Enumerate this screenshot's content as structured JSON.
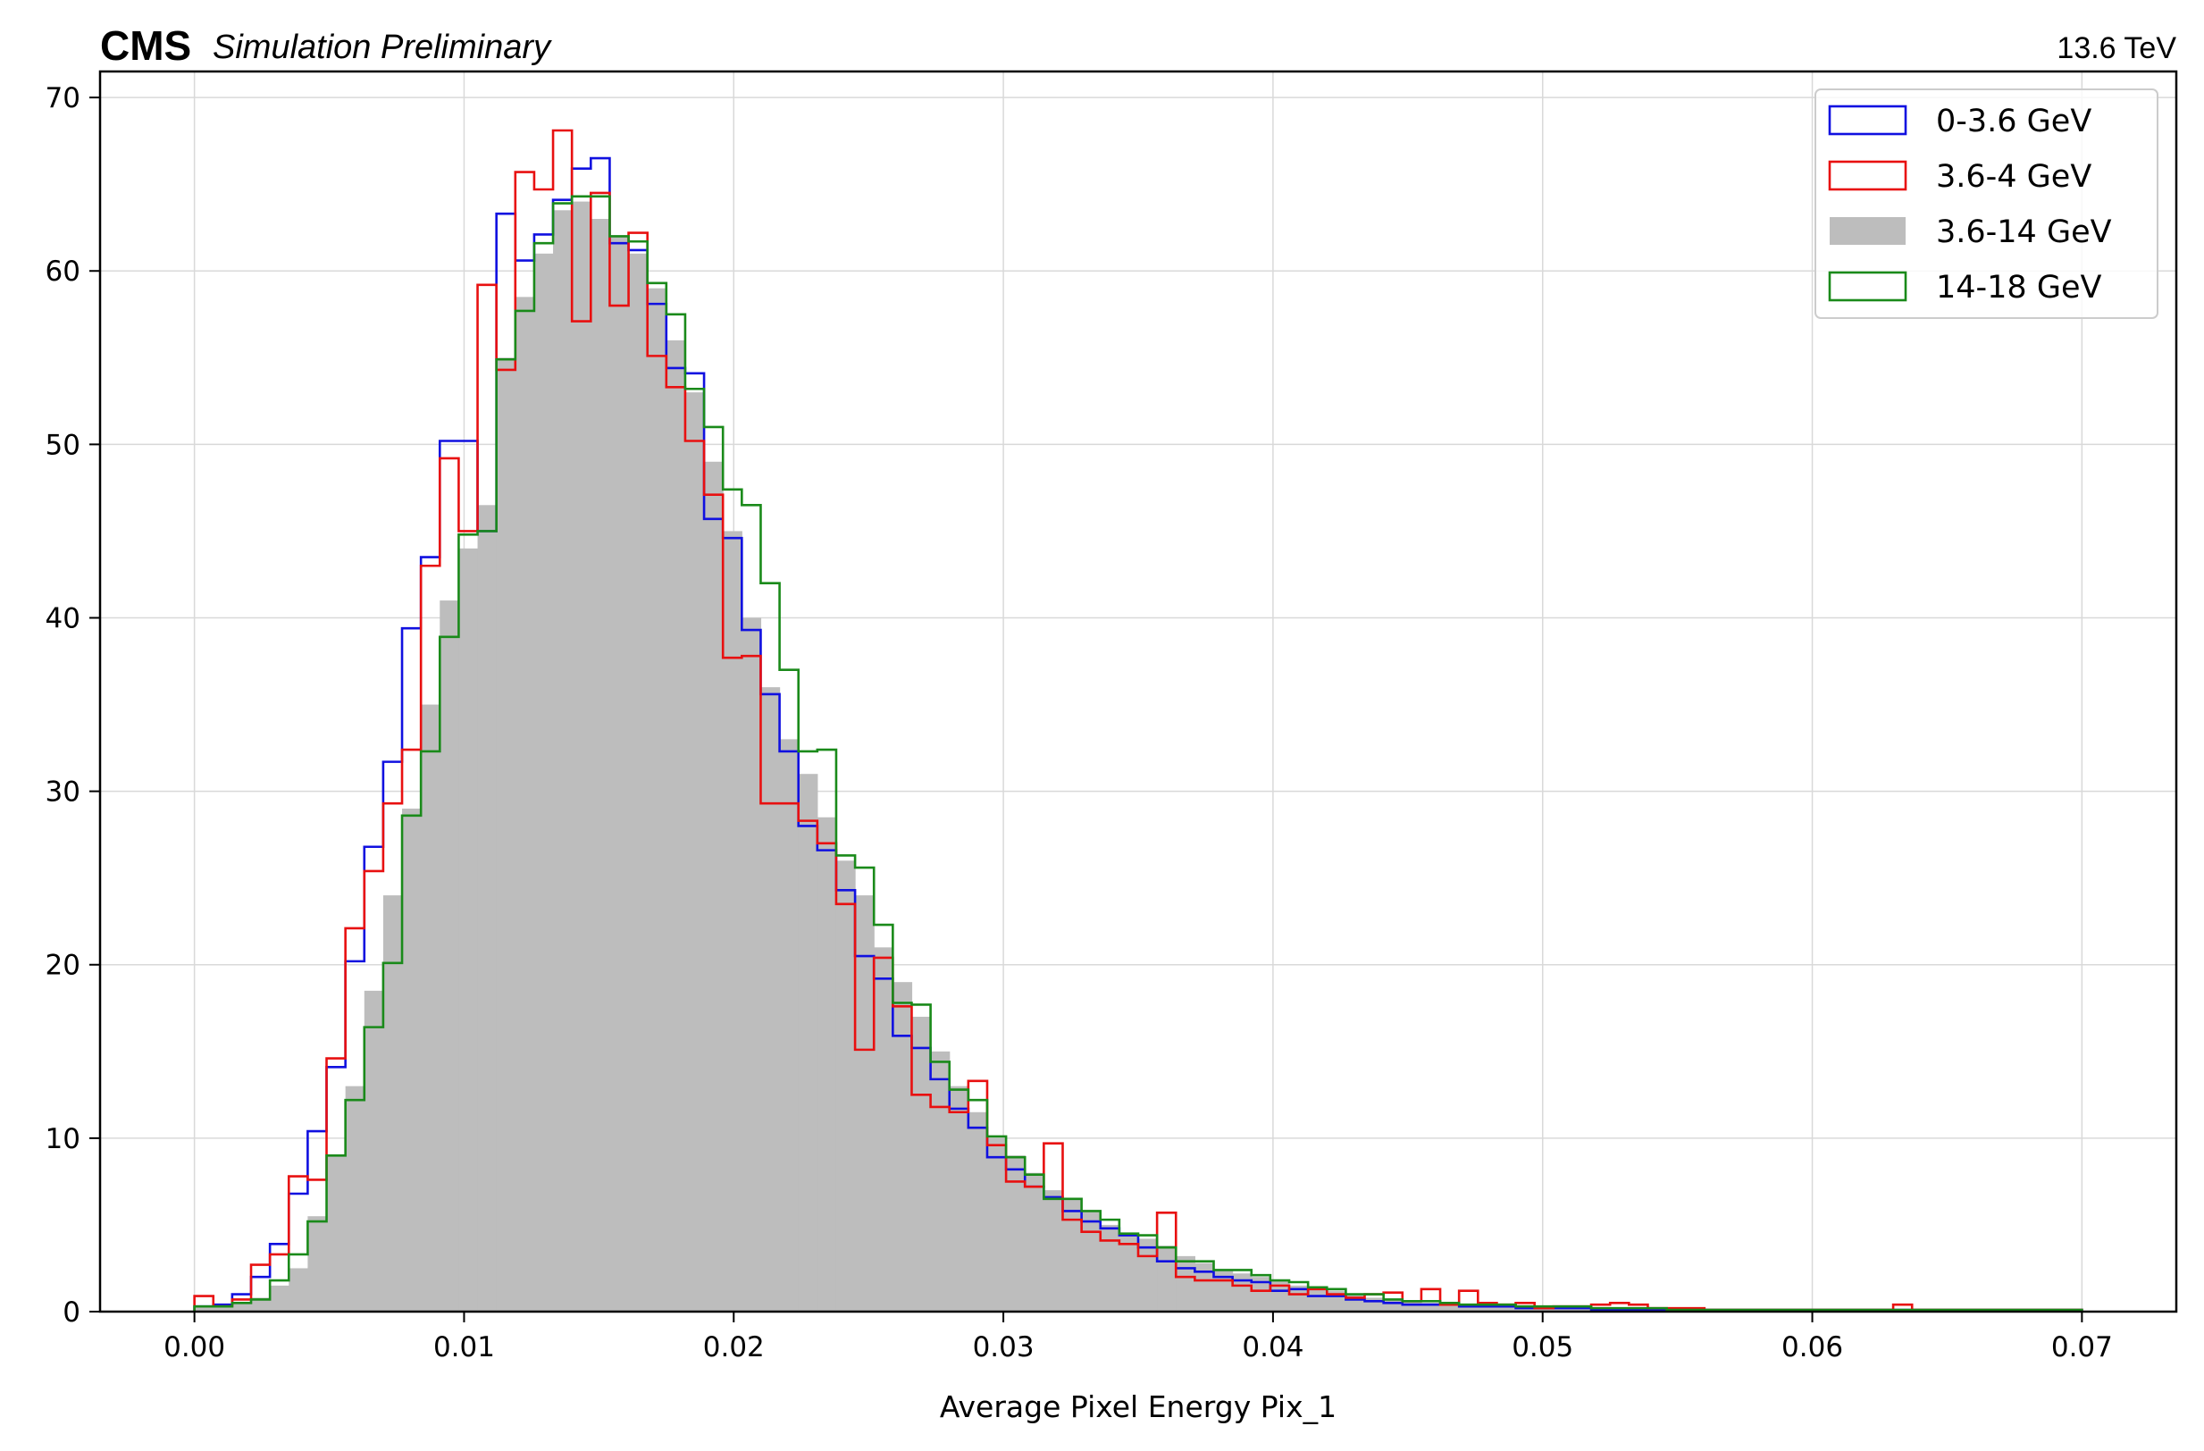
{
  "chart_data": {
    "type": "histogram",
    "experiment_label": "CMS",
    "status_label": "Simulation Preliminary",
    "energy_label": "13.6 TeV",
    "xlabel": "Average Pixel Energy Pix_1",
    "ylabel": "",
    "xlim": [
      -0.0035,
      0.0735
    ],
    "ylim": [
      0,
      71.5
    ],
    "x_ticks": [
      "0.00",
      "0.01",
      "0.02",
      "0.03",
      "0.04",
      "0.05",
      "0.06",
      "0.07"
    ],
    "x_tick_values": [
      0,
      0.01,
      0.02,
      0.03,
      0.04,
      0.05,
      0.06,
      0.07
    ],
    "y_ticks": [
      "0",
      "10",
      "20",
      "30",
      "40",
      "50",
      "60",
      "70"
    ],
    "y_tick_values": [
      0,
      10,
      20,
      30,
      40,
      50,
      60,
      70
    ],
    "grid": true,
    "legend_position": "top-right",
    "bins": {
      "start": 0.0,
      "end": 0.07,
      "count": 100
    },
    "series": [
      {
        "name": "3.6-14 GeV",
        "style": "filled",
        "color": "#bdbdbd",
        "values": [
          0.3,
          0.3,
          0.5,
          0.8,
          1.5,
          2.5,
          5.5,
          9.0,
          13.0,
          18.5,
          24.0,
          29.0,
          35.0,
          41.0,
          44.0,
          46.5,
          55.0,
          58.5,
          61.0,
          63.5,
          64.0,
          63.0,
          62.0,
          61.0,
          59.0,
          56.0,
          53.0,
          49.0,
          45.0,
          40.0,
          36.0,
          33.0,
          31.0,
          28.5,
          26.0,
          24.0,
          21.0,
          19.0,
          17.0,
          15.0,
          13.0,
          11.5,
          10.0,
          9.0,
          8.0,
          7.0,
          6.5,
          5.8,
          5.0,
          4.5,
          4.2,
          3.8,
          3.2,
          2.8,
          2.4,
          2.2,
          2.0,
          1.8,
          1.5,
          1.3,
          1.2,
          1.0,
          0.8,
          0.7,
          0.6,
          0.5,
          0.5,
          0.4,
          0.4,
          0.3,
          0.3,
          0.3,
          0.2,
          0.2,
          0.2,
          0.2,
          0.1,
          0.1,
          0.1,
          0.1,
          0.1,
          0.1,
          0.1,
          0.1,
          0.1,
          0.1,
          0.1,
          0.1,
          0.1,
          0.1,
          0.1,
          0.1,
          0.1,
          0.1,
          0.1,
          0.1,
          0.1,
          0.1,
          0.1,
          0.1
        ]
      },
      {
        "name": "0-3.6 GeV",
        "style": "step",
        "color": "#1010e0",
        "values": [
          0.3,
          0.4,
          1.0,
          2.0,
          3.9,
          6.8,
          10.4,
          14.1,
          20.2,
          26.8,
          31.7,
          39.4,
          43.5,
          50.2,
          50.2,
          45.0,
          63.3,
          60.6,
          62.1,
          64.1,
          65.9,
          66.5,
          61.6,
          61.2,
          58.1,
          54.4,
          54.1,
          45.7,
          44.6,
          39.3,
          35.6,
          32.3,
          28.0,
          26.6,
          24.3,
          20.5,
          19.2,
          15.9,
          15.2,
          13.4,
          11.7,
          10.6,
          8.9,
          8.2,
          7.2,
          6.6,
          5.8,
          5.2,
          4.8,
          4.4,
          3.7,
          2.9,
          2.5,
          2.3,
          2.0,
          1.8,
          1.7,
          1.2,
          1.3,
          0.9,
          0.9,
          0.7,
          0.6,
          0.5,
          0.4,
          0.4,
          0.4,
          0.3,
          0.3,
          0.3,
          0.2,
          0.2,
          0.2,
          0.2,
          0.1,
          0.1,
          0.1,
          0.1,
          0.1,
          0.1,
          0.1,
          0.1,
          0.1,
          0.1,
          0.1,
          0.1,
          0.1,
          0.1,
          0.1,
          0.1,
          0.1,
          0.1,
          0.1,
          0.1,
          0.1,
          0.1,
          0.1,
          0.1,
          0.1,
          0.1
        ]
      },
      {
        "name": "3.6-4 GeV",
        "style": "step",
        "color": "#e81010",
        "values": [
          0.9,
          0.3,
          0.7,
          2.7,
          3.3,
          7.8,
          7.6,
          14.6,
          22.1,
          25.4,
          29.3,
          32.4,
          43.0,
          49.2,
          45.0,
          59.2,
          54.3,
          65.7,
          64.7,
          68.1,
          57.1,
          64.5,
          58.0,
          62.2,
          55.1,
          53.3,
          50.2,
          47.1,
          37.7,
          37.8,
          29.3,
          29.3,
          28.3,
          27.0,
          23.5,
          15.1,
          20.4,
          17.6,
          12.5,
          11.8,
          11.5,
          13.3,
          9.6,
          7.5,
          7.2,
          9.7,
          5.3,
          4.6,
          4.1,
          3.9,
          3.2,
          5.7,
          2.0,
          1.8,
          1.8,
          1.5,
          1.2,
          1.5,
          1.0,
          1.3,
          1.0,
          0.8,
          1.0,
          1.1,
          0.6,
          1.3,
          0.4,
          1.2,
          0.5,
          0.4,
          0.5,
          0.2,
          0.3,
          0.3,
          0.4,
          0.5,
          0.4,
          0.2,
          0.2,
          0.2,
          0.1,
          0.1,
          0.1,
          0.1,
          0.1,
          0.1,
          0.1,
          0.1,
          0.1,
          0.1,
          0.4,
          0.1,
          0.1,
          0.1,
          0.1,
          0.1,
          0.1,
          0.1,
          0.1,
          0.1
        ]
      },
      {
        "name": "14-18 GeV",
        "style": "step",
        "color": "#1a8a1a",
        "values": [
          0.3,
          0.3,
          0.5,
          0.7,
          1.8,
          3.3,
          5.2,
          9.0,
          12.2,
          16.4,
          20.1,
          28.6,
          32.3,
          38.9,
          44.8,
          45.0,
          54.9,
          57.7,
          61.6,
          63.9,
          64.3,
          64.3,
          62.0,
          61.7,
          59.3,
          57.5,
          53.2,
          51.0,
          47.4,
          46.5,
          42.0,
          37.0,
          32.3,
          32.4,
          26.3,
          25.6,
          22.3,
          17.8,
          17.7,
          14.4,
          12.8,
          12.2,
          10.1,
          8.9,
          7.9,
          6.5,
          6.5,
          5.8,
          5.3,
          4.5,
          4.4,
          3.7,
          2.9,
          2.9,
          2.4,
          2.4,
          2.1,
          1.8,
          1.7,
          1.4,
          1.3,
          1.0,
          1.0,
          0.7,
          0.6,
          0.6,
          0.5,
          0.4,
          0.4,
          0.4,
          0.3,
          0.3,
          0.3,
          0.3,
          0.2,
          0.2,
          0.2,
          0.2,
          0.1,
          0.1,
          0.1,
          0.1,
          0.1,
          0.1,
          0.1,
          0.1,
          0.1,
          0.1,
          0.1,
          0.1,
          0.1,
          0.1,
          0.1,
          0.1,
          0.1,
          0.1,
          0.1,
          0.1,
          0.1,
          0.1
        ]
      }
    ],
    "legend": [
      {
        "label": "0-3.6 GeV",
        "color": "#1010e0",
        "style": "outline"
      },
      {
        "label": "3.6-4 GeV",
        "color": "#e81010",
        "style": "outline"
      },
      {
        "label": "3.6-14 GeV",
        "color": "#bdbdbd",
        "style": "filled"
      },
      {
        "label": "14-18 GeV",
        "color": "#1a8a1a",
        "style": "outline"
      }
    ]
  }
}
